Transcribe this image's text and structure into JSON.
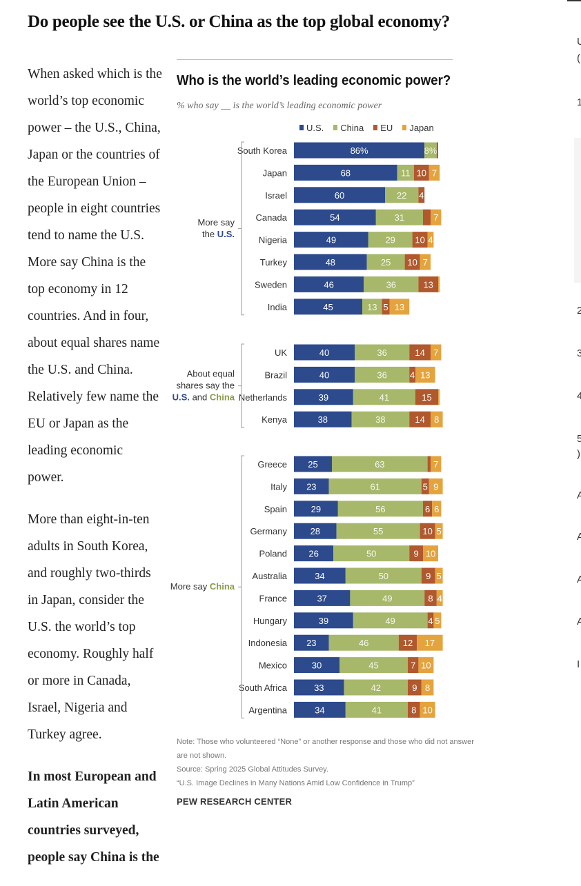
{
  "page": {
    "title": "Do people see the U.S. or China as the top global economy?",
    "paragraphs": [
      "When asked which is the world’s top economic power – the U.S., China, Japan or the countries of the European Union – people in eight countries tend to name the U.S. More say China is the top economy in 12 countries. And in four, about equal shares name the U.S. and China. Relatively few name the EU or Japan as the leading economic power.",
      "More than eight-in-ten adults in South Korea, and roughly two-thirds in Japan, consider the U.S. the world’s top economy. Roughly half or more in Canada, Israel, Nigeria and Turkey agree.",
      "In most European and Latin American countries surveyed, people say China is the"
    ],
    "right_fragments": [
      "U",
      "(",
      "1",
      "2",
      "3",
      "4",
      "5",
      ")",
      "A",
      "A",
      "A",
      "A",
      "I"
    ]
  },
  "chart_data": {
    "type": "bar",
    "stacked": true,
    "orientation": "horizontal",
    "title": "Who is the world’s leading economic power?",
    "subtitle": "% who say __ is the world’s leading economic power",
    "legend": [
      "U.S.",
      "China",
      "EU",
      "Japan"
    ],
    "colors": {
      "U.S.": "#2c4a8c",
      "China": "#a7b86b",
      "EU": "#b0582e",
      "Japan": "#e5a33d"
    },
    "groups": [
      {
        "label_lines": [
          "More say",
          "the U.S."
        ],
        "rows": [
          {
            "country": "South Korea",
            "values": [
              86,
              8,
              1,
              0
            ],
            "labels": [
              "86%",
              "8%",
              "",
              ""
            ]
          },
          {
            "country": "Japan",
            "values": [
              68,
              11,
              10,
              7
            ],
            "labels": [
              "68",
              "11",
              "10",
              "7"
            ]
          },
          {
            "country": "Israel",
            "values": [
              60,
              22,
              4,
              0
            ],
            "labels": [
              "60",
              "22",
              "4",
              ""
            ]
          },
          {
            "country": "Canada",
            "values": [
              54,
              31,
              5,
              7
            ],
            "labels": [
              "54",
              "31",
              "",
              "7"
            ]
          },
          {
            "country": "Nigeria",
            "values": [
              49,
              29,
              10,
              4
            ],
            "labels": [
              "49",
              "29",
              "10",
              "4"
            ]
          },
          {
            "country": "Turkey",
            "values": [
              48,
              25,
              10,
              7
            ],
            "labels": [
              "48",
              "25",
              "10",
              "7"
            ]
          },
          {
            "country": "Sweden",
            "values": [
              46,
              36,
              13,
              1
            ],
            "labels": [
              "46",
              "36",
              "13",
              ""
            ]
          },
          {
            "country": "India",
            "values": [
              45,
              13,
              5,
              13
            ],
            "labels": [
              "45",
              "13",
              "5",
              "13"
            ]
          }
        ]
      },
      {
        "label_lines": [
          "About equal",
          "shares say the",
          "U.S. and China"
        ],
        "rows": [
          {
            "country": "UK",
            "values": [
              40,
              36,
              14,
              7
            ],
            "labels": [
              "40",
              "36",
              "14",
              "7"
            ]
          },
          {
            "country": "Brazil",
            "values": [
              40,
              36,
              4,
              13
            ],
            "labels": [
              "40",
              "36",
              "4",
              "13"
            ]
          },
          {
            "country": "Netherlands",
            "values": [
              39,
              41,
              15,
              1
            ],
            "labels": [
              "39",
              "41",
              "15",
              ""
            ]
          },
          {
            "country": "Kenya",
            "values": [
              38,
              38,
              14,
              8
            ],
            "labels": [
              "38",
              "38",
              "14",
              "8"
            ]
          }
        ]
      },
      {
        "label_lines": [
          "More say China"
        ],
        "rows": [
          {
            "country": "Greece",
            "values": [
              25,
              63,
              2,
              7
            ],
            "labels": [
              "25",
              "63",
              "",
              "7"
            ]
          },
          {
            "country": "Italy",
            "values": [
              23,
              61,
              5,
              9
            ],
            "labels": [
              "23",
              "61",
              "5",
              "9"
            ]
          },
          {
            "country": "Spain",
            "values": [
              29,
              56,
              6,
              6
            ],
            "labels": [
              "29",
              "56",
              "6",
              "6"
            ]
          },
          {
            "country": "Germany",
            "values": [
              28,
              55,
              10,
              5
            ],
            "labels": [
              "28",
              "55",
              "10",
              "5"
            ]
          },
          {
            "country": "Poland",
            "values": [
              26,
              50,
              9,
              10
            ],
            "labels": [
              "26",
              "50",
              "9",
              "10"
            ]
          },
          {
            "country": "Australia",
            "values": [
              34,
              50,
              9,
              5
            ],
            "labels": [
              "34",
              "50",
              "9",
              "5"
            ]
          },
          {
            "country": "France",
            "values": [
              37,
              49,
              8,
              4
            ],
            "labels": [
              "37",
              "49",
              "8",
              "4"
            ]
          },
          {
            "country": "Hungary",
            "values": [
              39,
              49,
              4,
              5
            ],
            "labels": [
              "39",
              "49",
              "4",
              "5"
            ]
          },
          {
            "country": "Indonesia",
            "values": [
              23,
              46,
              12,
              17
            ],
            "labels": [
              "23",
              "46",
              "12",
              "17"
            ]
          },
          {
            "country": "Mexico",
            "values": [
              30,
              45,
              7,
              10
            ],
            "labels": [
              "30",
              "45",
              "7",
              "10"
            ]
          },
          {
            "country": "South Africa",
            "values": [
              33,
              42,
              9,
              8
            ],
            "labels": [
              "33",
              "42",
              "9",
              "8"
            ]
          },
          {
            "country": "Argentina",
            "values": [
              34,
              41,
              8,
              10
            ],
            "labels": [
              "34",
              "41",
              "8",
              "10"
            ]
          }
        ]
      }
    ],
    "xlim": [
      0,
      100
    ],
    "notes": [
      "Note: Those who volunteered “None” or another response and those who did not answer",
      "are not shown.",
      "Source: Spring 2025 Global Attitudes Survey.",
      "“U.S. Image Declines in Many Nations Amid Low Confidence in Trump”"
    ],
    "source_brand": "PEW RESEARCH CENTER"
  }
}
